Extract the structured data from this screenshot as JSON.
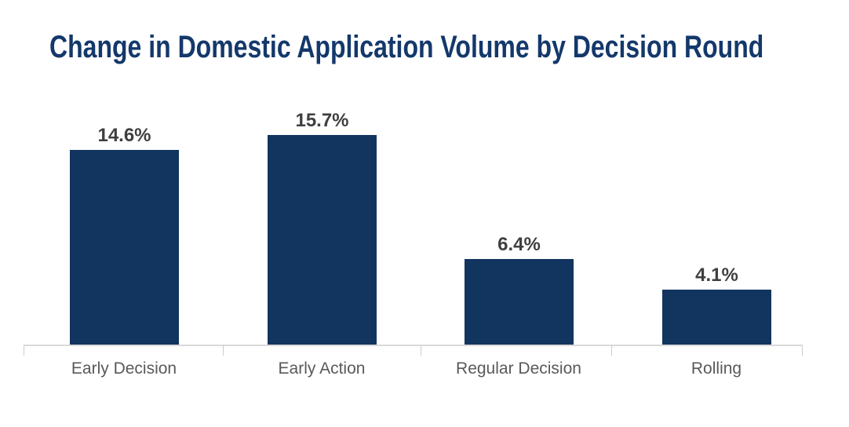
{
  "title": "Change in Domestic Application Volume by Decision Round",
  "colors": {
    "bar": "#11355e",
    "title": "#14386b",
    "value_label": "#3f3f3f",
    "axis_label": "#595959",
    "axis_line": "#d9d9d9"
  },
  "chart_data": {
    "type": "bar",
    "title": "Change in Domestic Application Volume by Decision Round",
    "categories": [
      "Early Decision",
      "Early Action",
      "Regular Decision",
      "Rolling"
    ],
    "values": [
      14.6,
      15.7,
      6.4,
      4.1
    ],
    "value_labels": [
      "14.6%",
      "15.7%",
      "6.4%",
      "4.1%"
    ],
    "unit": "%",
    "xlabel": "",
    "ylabel": "",
    "ylim": [
      0,
      18
    ],
    "grid": false,
    "legend": false,
    "y_axis_visible": false,
    "bar_label_position": "above"
  }
}
